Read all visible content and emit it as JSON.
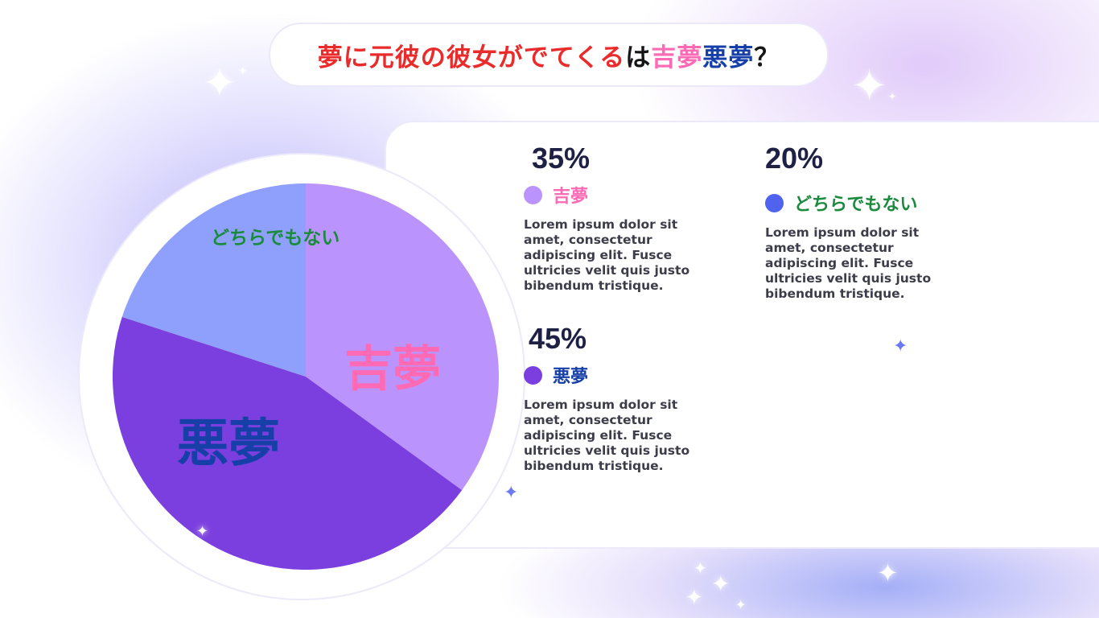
{
  "title": {
    "part1": "夢に元彼の彼女がでてくる",
    "part2": "は",
    "part3": "吉夢",
    "part4": "悪夢",
    "part5": "？"
  },
  "chart_data": {
    "type": "pie",
    "slices": [
      {
        "label": "吉夢",
        "value": 35,
        "color": "#bb93fd",
        "label_color": "#ff6ab5"
      },
      {
        "label": "悪夢",
        "value": 45,
        "color": "#7b3fdf",
        "label_color": "#1640a8"
      },
      {
        "label": "どちらでもない",
        "value": 20,
        "color": "#8ea0fb",
        "label_color": "#1a8a3c"
      }
    ]
  },
  "stats": [
    {
      "percent": "35%",
      "label": "吉夢",
      "dot_color": "#bb93fd",
      "label_color": "#ff6ab5",
      "desc": "Lorem ipsum dolor sit amet, consectetur adipiscing elit. Fusce ultricies velit quis justo bibendum tristique."
    },
    {
      "percent": "20%",
      "label": "どちらでもない",
      "dot_color": "#4f63ef",
      "label_color": "#1a8a3c",
      "desc": "Lorem ipsum dolor sit amet, consectetur adipiscing elit. Fusce ultricies velit quis justo bibendum tristique."
    },
    {
      "percent": "45%",
      "label": "悪夢",
      "dot_color": "#7b3fdf",
      "label_color": "#1640a8",
      "desc": "Lorem ipsum dolor sit amet, consectetur adipiscing elit. Fusce ultricies velit quis justo bibendum tristique."
    }
  ]
}
